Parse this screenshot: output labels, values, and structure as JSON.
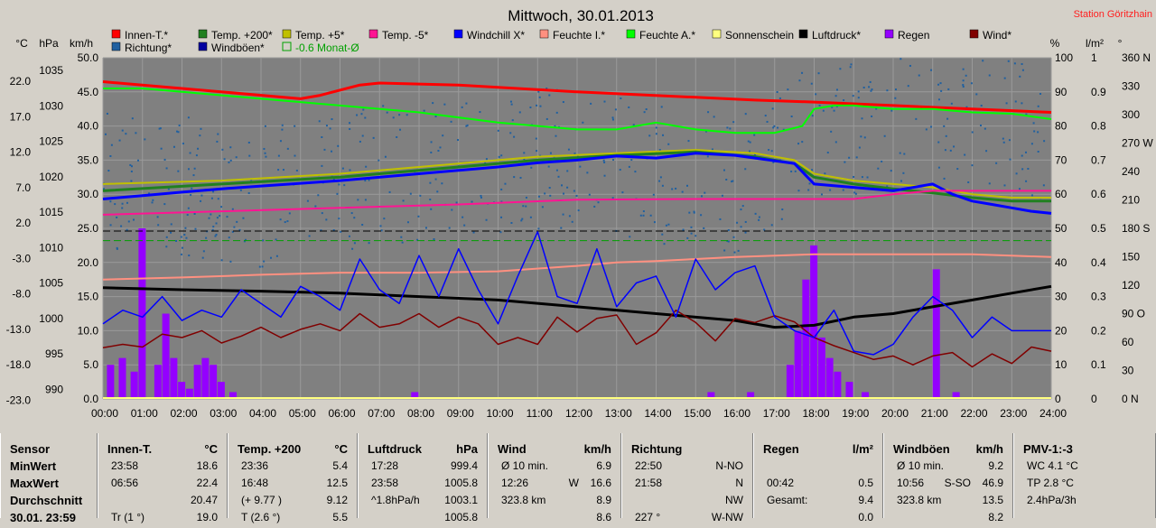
{
  "title": "Mittwoch, 30.01.2013",
  "station": "Station Göritzhain",
  "legend": {
    "row1": [
      {
        "label": "Innen-T.*",
        "color": "#ff0000"
      },
      {
        "label": "Temp. +200*",
        "color": "#208020"
      },
      {
        "label": "Temp. +5*",
        "color": "#c0c000"
      },
      {
        "label": "Temp. -5*",
        "color": "#ff1493"
      },
      {
        "label": "Windchill X*",
        "color": "#0000ff"
      },
      {
        "label": "Feuchte I.*",
        "color": "#ff9080"
      },
      {
        "label": "Feuchte A.*",
        "color": "#00ff00"
      },
      {
        "label": "Sonnenschein",
        "color": "#ffff80"
      },
      {
        "label": "Luftdruck*",
        "color": "#000000"
      },
      {
        "label": "Regen",
        "color": "#9400ff"
      },
      {
        "label": "Wind*",
        "color": "#800000"
      }
    ],
    "row2": [
      {
        "label": "Richtung*",
        "color": "#2060a0"
      },
      {
        "label": "Windböen*",
        "color": "#0000a0"
      },
      {
        "label": "-0.6 Monat-Ø",
        "color": "#00a000",
        "dashed": true
      }
    ]
  },
  "axes": {
    "temp_unit": "°C",
    "hpa_unit": "hPa",
    "kmh_unit": "km/h",
    "pct_unit": "%",
    "lm_unit": "l/m²",
    "deg_unit": "°",
    "temp_ticks": [
      "22.0",
      "17.0",
      "12.0",
      "7.0",
      "2.0",
      "-3.0",
      "-8.0",
      "-13.0",
      "-18.0",
      "-23.0"
    ],
    "hpa_ticks": [
      "1035",
      "1030",
      "1025",
      "1020",
      "1015",
      "1010",
      "1005",
      "1000",
      "995",
      "990"
    ],
    "kmh_ticks": [
      "50.0",
      "45.0",
      "40.0",
      "35.0",
      "30.0",
      "25.0",
      "20.0",
      "15.0",
      "10.0",
      "5.0",
      "0.0"
    ],
    "pct_ticks": [
      "100",
      "90",
      "80",
      "70",
      "60",
      "50",
      "40",
      "30",
      "20",
      "10",
      "0"
    ],
    "lm_ticks": [
      "1",
      "0.9",
      "0.8",
      "0.7",
      "0.6",
      "0.5",
      "0.4",
      "0.3",
      "0.2",
      "0.1",
      "0"
    ],
    "deg_ticks": [
      "360 N",
      "330",
      "300",
      "270 W",
      "240",
      "210",
      "180 S",
      "150",
      "120",
      "90 O",
      "60",
      "30",
      "0 N"
    ],
    "x_ticks": [
      "00:00",
      "01:00",
      "02:00",
      "03:00",
      "04:00",
      "05:00",
      "06:00",
      "07:00",
      "08:00",
      "09:00",
      "10:00",
      "11:00",
      "12:00",
      "13:00",
      "14:00",
      "15:00",
      "16:00",
      "17:00",
      "18:00",
      "19:00",
      "20:00",
      "21:00",
      "22:00",
      "23:00",
      "24:00"
    ]
  },
  "chart_data": {
    "type": "line",
    "title": "Mittwoch, 30.01.2013",
    "x_unit": "hours",
    "grid": true,
    "kmh_range": [
      0,
      50
    ],
    "series": [
      {
        "name": "Innen-T.*",
        "axis": "kmh",
        "color": "#ff0000",
        "width": 3,
        "x": [
          0,
          2,
          5,
          5.5,
          6.5,
          7,
          9,
          12,
          15,
          16.5,
          18,
          20,
          22,
          24
        ],
        "y": [
          46.5,
          45.5,
          44,
          44.5,
          46,
          46.3,
          46,
          45,
          44.2,
          43.8,
          43.5,
          43,
          42.5,
          42
        ]
      },
      {
        "name": "Feuchte A.*",
        "axis": "kmh",
        "color": "#00ff00",
        "width": 2,
        "x": [
          0,
          1,
          2,
          3,
          4,
          6,
          8,
          10,
          12,
          13,
          14,
          15,
          16,
          17,
          17.7,
          18,
          18.5,
          19,
          20,
          21,
          22,
          23,
          24
        ],
        "y": [
          45.5,
          45.5,
          45,
          44.5,
          44,
          43,
          42,
          40.5,
          39.5,
          39.5,
          40.5,
          39.5,
          39,
          39,
          40,
          42.5,
          43,
          43,
          42.5,
          42.5,
          42,
          41.8,
          41
        ]
      },
      {
        "name": "Temp. +5*",
        "axis": "kmh",
        "color": "#c0c000",
        "width": 2,
        "x": [
          0,
          3,
          6,
          9,
          11,
          13,
          15,
          16.5,
          17.5,
          18,
          19,
          20,
          21,
          22,
          23,
          24
        ],
        "y": [
          31.5,
          32,
          33,
          34.5,
          35.5,
          36,
          36.5,
          36,
          35,
          33,
          32,
          31.5,
          31,
          30,
          29.5,
          29.5
        ]
      },
      {
        "name": "Temp. +200*",
        "axis": "kmh",
        "color": "#208020",
        "width": 3,
        "x": [
          0,
          3,
          6,
          9,
          11,
          13,
          15,
          16.5,
          17.5,
          18,
          19,
          20,
          21,
          22,
          23,
          24
        ],
        "y": [
          30.5,
          31.5,
          32.5,
          34,
          35,
          35.7,
          36.2,
          35.5,
          34.5,
          32.5,
          31.5,
          30.8,
          30.2,
          29.5,
          29,
          29
        ]
      },
      {
        "name": "Windchill X*",
        "axis": "kmh",
        "color": "#0000ff",
        "width": 3,
        "x": [
          0,
          1,
          2,
          3,
          4,
          5,
          6,
          8,
          10,
          11,
          12,
          13,
          14,
          15,
          16,
          16.5,
          17.5,
          18,
          19,
          20,
          21,
          21.5,
          22,
          22.5,
          23,
          23.5,
          24
        ],
        "y": [
          29.3,
          29.8,
          30.3,
          30.8,
          31.2,
          31.6,
          32,
          33,
          34,
          34.6,
          35,
          35.6,
          35.3,
          36,
          35.7,
          35.3,
          34.5,
          31.5,
          31,
          30.5,
          31.5,
          30,
          29,
          28.5,
          28,
          27.5,
          27.2
        ]
      },
      {
        "name": "Temp. -5*",
        "axis": "kmh",
        "color": "#ff1493",
        "width": 2,
        "x": [
          0,
          3,
          6,
          9,
          12,
          15,
          18,
          19,
          20,
          21,
          22,
          23,
          24
        ],
        "y": [
          27,
          27.5,
          28,
          28.5,
          29.2,
          29.3,
          29.3,
          29.3,
          30,
          30.5,
          30.5,
          30.5,
          30.5
        ]
      },
      {
        "name": "Feuchte I.*",
        "axis": "kmh",
        "color": "#ff9080",
        "width": 2,
        "x": [
          0,
          2,
          4,
          6,
          8,
          10,
          12,
          13,
          14,
          15,
          16,
          17,
          18,
          20,
          22,
          23,
          24
        ],
        "y": [
          17.5,
          17.8,
          18.2,
          18.5,
          18.5,
          18.7,
          19.5,
          20,
          20.2,
          20.5,
          20.8,
          21,
          21.2,
          21.2,
          21.2,
          21,
          20.8
        ]
      },
      {
        "name": "Luftdruck*",
        "axis": "kmh",
        "color": "#000000",
        "width": 3,
        "x": [
          0,
          2,
          4,
          6,
          8,
          10,
          12,
          14,
          16,
          17,
          18,
          19,
          20,
          21,
          22,
          23,
          24
        ],
        "y": [
          16.3,
          16,
          15.8,
          15.5,
          15,
          14.5,
          13.5,
          12.5,
          11.5,
          10.5,
          10.8,
          12,
          12.5,
          13.5,
          14.5,
          15.5,
          16.5
        ]
      },
      {
        "name": "Wind*",
        "axis": "kmh",
        "color": "#800000",
        "width": 1.5,
        "x": [
          0,
          0.5,
          1,
          1.5,
          2,
          2.5,
          3,
          3.5,
          4,
          4.5,
          5,
          5.5,
          6,
          6.5,
          7,
          7.5,
          8,
          8.5,
          9,
          9.5,
          10,
          10.5,
          11,
          11.5,
          12,
          12.5,
          13,
          13.5,
          14,
          14.5,
          15,
          15.5,
          16,
          16.5,
          17,
          17.5,
          18,
          18.5,
          19,
          19.5,
          20,
          20.5,
          21,
          21.5,
          22,
          22.5,
          23,
          23.5,
          24
        ],
        "y": [
          7.5,
          8,
          7.6,
          9.5,
          9,
          10,
          8.2,
          9.2,
          10.5,
          9,
          10.2,
          11,
          10,
          12.5,
          10.5,
          11,
          12.5,
          10.5,
          12,
          11,
          8,
          9,
          8,
          12,
          9.8,
          11.8,
          12.3,
          8,
          9.7,
          13,
          11.2,
          8.5,
          11.8,
          11.2,
          12.2,
          11.3,
          9,
          7.8,
          6.8,
          5.8,
          6.3,
          5,
          6.3,
          6.8,
          4.7,
          6.6,
          5.2,
          7.6,
          7
        ]
      },
      {
        "name": "Windböen*",
        "axis": "kmh",
        "color": "#0000ff",
        "width": 1.5,
        "x": [
          0,
          0.5,
          1,
          1.5,
          2,
          2.5,
          3,
          3.5,
          4,
          4.5,
          5,
          5.5,
          6,
          6.5,
          7,
          7.5,
          8,
          8.5,
          9,
          9.5,
          10,
          10.5,
          11,
          11.5,
          12,
          12.5,
          13,
          13.5,
          14,
          14.5,
          15,
          15.5,
          16,
          16.5,
          17,
          17.5,
          18,
          18.5,
          19,
          19.5,
          20,
          20.5,
          21,
          21.5,
          22,
          22.5,
          23,
          23.5,
          24
        ],
        "y": [
          11,
          13,
          12,
          15,
          11.5,
          13,
          12,
          16,
          14,
          12,
          16.5,
          15,
          13,
          20.5,
          16,
          14,
          21,
          15,
          22,
          16,
          11,
          18,
          24.5,
          15,
          14,
          22,
          13.5,
          17,
          18,
          12,
          20.5,
          16,
          18.5,
          19.5,
          12,
          10,
          9,
          13,
          7,
          6.5,
          8,
          12,
          15,
          13,
          9,
          12,
          10,
          10,
          10
        ]
      },
      {
        "name": "Regen",
        "axis": "lm",
        "color": "#9400ff",
        "bars": true,
        "x": [
          0.1,
          0.4,
          0.7,
          0.9,
          1.3,
          1.5,
          1.7,
          1.9,
          2.1,
          2.3,
          2.5,
          2.7,
          2.9,
          3.2,
          7.8,
          15.3,
          16.3,
          17.3,
          17.5,
          17.7,
          17.9,
          18.1,
          18.3,
          18.5,
          18.8,
          19.2,
          21,
          21.5
        ],
        "y": [
          0.1,
          0.12,
          0.08,
          0.5,
          0.1,
          0.25,
          0.12,
          0.05,
          0.03,
          0.1,
          0.12,
          0.1,
          0.05,
          0.02,
          0.02,
          0.02,
          0.02,
          0.1,
          0.2,
          0.35,
          0.45,
          0.18,
          0.12,
          0.08,
          0.05,
          0.02,
          0.38,
          0.02
        ]
      }
    ],
    "reference_lines": [
      {
        "name": "-0.6 Monat-Ø",
        "axis": "kmh",
        "y": 23.2,
        "color": "#00a000",
        "dashed": true
      },
      {
        "name": "",
        "axis": "kmh",
        "y": 24.6,
        "color": "#000000",
        "dashed": true
      }
    ],
    "direction_dots": {
      "name": "Richtung*",
      "axis": "deg",
      "color": "#2060a0",
      "mean": [
        230,
        232,
        225,
        220,
        215,
        225,
        230,
        235,
        240,
        245,
        250,
        255,
        255,
        245,
        240,
        235,
        230,
        260,
        280,
        290,
        290,
        300,
        305,
        300,
        280
      ]
    }
  },
  "panels": [
    {
      "title": "Sensor",
      "unit": "",
      "rows": [
        [
          "MinWert",
          "",
          ""
        ],
        [
          "MaxWert",
          "",
          ""
        ],
        [
          "Durchschnitt",
          "",
          ""
        ],
        [
          "30.01. 23:59",
          "",
          ""
        ]
      ]
    },
    {
      "title": "Innen-T.",
      "unit": "°C",
      "rows": [
        [
          "23:58",
          "",
          "18.6"
        ],
        [
          "06:56",
          "",
          "22.4"
        ],
        [
          "",
          "",
          "20.47"
        ],
        [
          "Tr (1 °)",
          "",
          "19.0"
        ]
      ]
    },
    {
      "title": "Temp. +200",
      "unit": "°C",
      "rows": [
        [
          "23:36",
          "",
          "5.4"
        ],
        [
          "16:48",
          "",
          "12.5"
        ],
        [
          "(+ 9.77 )",
          "",
          "9.12"
        ],
        [
          "T (2.6 °)",
          "",
          "5.5"
        ]
      ]
    },
    {
      "title": "Luftdruck",
      "unit": "hPa",
      "rows": [
        [
          "17:28",
          "",
          "999.4"
        ],
        [
          "23:58",
          "",
          "1005.8"
        ],
        [
          "^1.8hPa/h",
          "",
          "1003.1"
        ],
        [
          "",
          "",
          "1005.8"
        ]
      ]
    },
    {
      "title": "Wind",
      "unit": "km/h",
      "rows": [
        [
          "Ø 10 min.",
          "",
          "6.9"
        ],
        [
          "12:26",
          "W",
          "16.6"
        ],
        [
          "323.8 km",
          "",
          "8.9"
        ],
        [
          "",
          "",
          "8.6"
        ]
      ]
    },
    {
      "title": "Richtung",
      "unit": "",
      "rows": [
        [
          "22:50",
          "",
          "N-NO"
        ],
        [
          "21:58",
          "",
          "N"
        ],
        [
          "",
          "",
          "NW"
        ],
        [
          "227 °",
          "",
          "W-NW"
        ]
      ]
    },
    {
      "title": "Regen",
      "unit": "l/m²",
      "rows": [
        [
          "",
          "",
          ""
        ],
        [
          "00:42",
          "",
          "0.5"
        ],
        [
          "Gesamt:",
          "",
          "9.4"
        ],
        [
          "",
          "",
          "0.0"
        ]
      ]
    },
    {
      "title": "Windböen",
      "unit": "km/h",
      "rows": [
        [
          "Ø 10 min.",
          "",
          "9.2"
        ],
        [
          "10:56",
          "S-SO",
          "46.9"
        ],
        [
          "323.8 km",
          "",
          "13.5"
        ],
        [
          "",
          "",
          "8.2"
        ]
      ]
    },
    {
      "title": "PMV-1:-3",
      "unit": "",
      "rows": [
        [
          "WC 4.1 °C",
          "",
          ""
        ],
        [
          "TP 2.8 °C",
          "",
          ""
        ],
        [
          "2.4hPa/3h",
          "",
          ""
        ],
        [
          "",
          "",
          ""
        ]
      ]
    }
  ]
}
